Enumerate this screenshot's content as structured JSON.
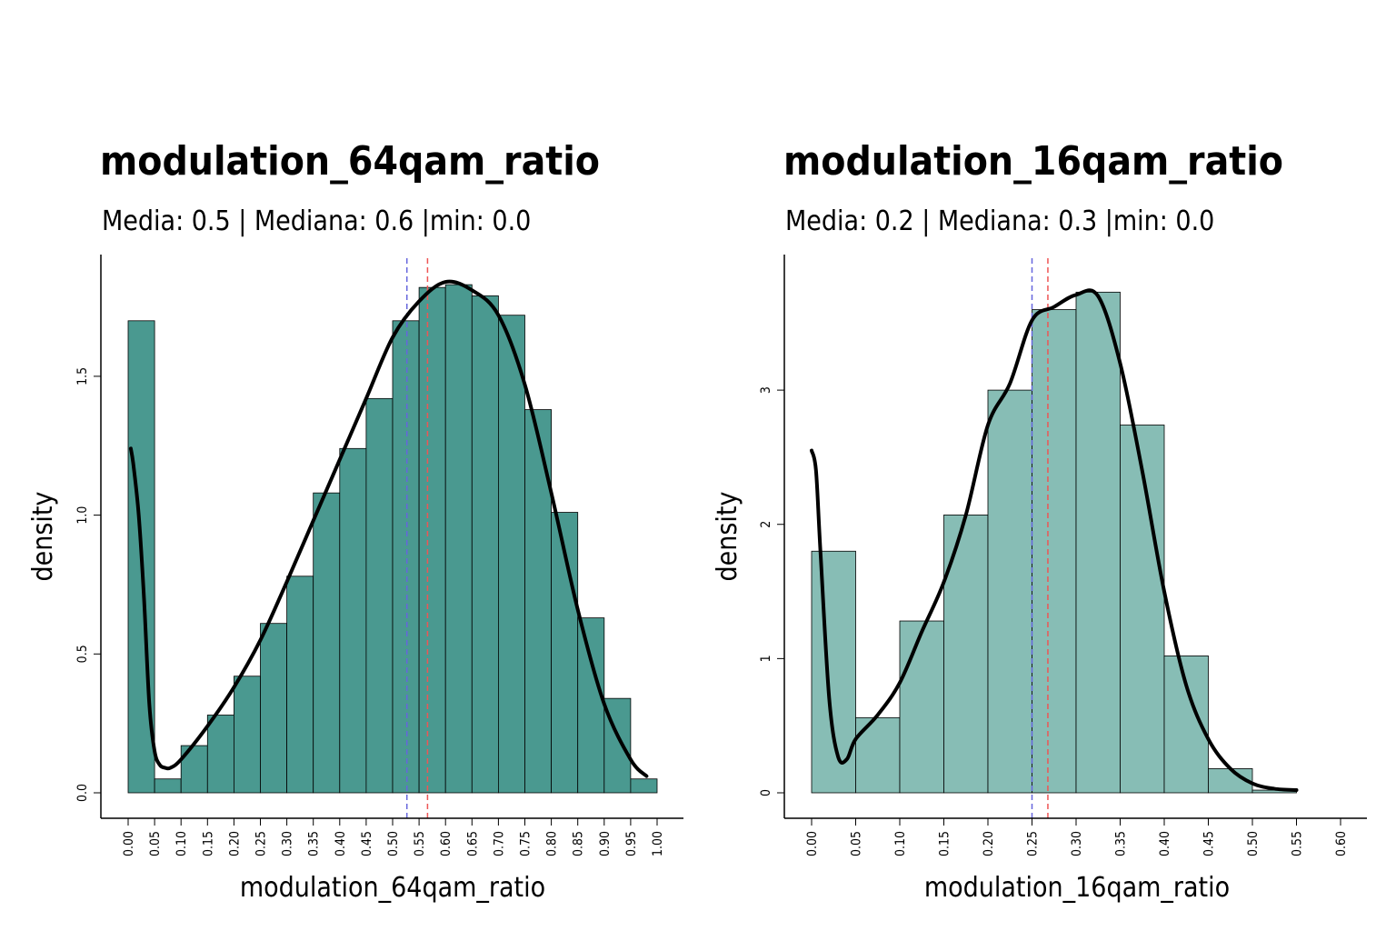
{
  "chart_data": [
    {
      "type": "bar",
      "title": "modulation_64qam_ratio",
      "subtitle": "Media: 0.5 | Mediana: 0.6 |min: 0.0",
      "xlabel": "modulation_64qam_ratio",
      "ylabel": "density",
      "bar_color": "#4a9990",
      "bin_width": 0.05,
      "bins_start": [
        0.0,
        0.05,
        0.1,
        0.15,
        0.2,
        0.25,
        0.3,
        0.35,
        0.4,
        0.45,
        0.5,
        0.55,
        0.6,
        0.65,
        0.7,
        0.75,
        0.8,
        0.85,
        0.9,
        0.95
      ],
      "values": [
        1.7,
        0.05,
        0.17,
        0.28,
        0.42,
        0.61,
        0.78,
        1.08,
        1.24,
        1.42,
        1.7,
        1.82,
        1.83,
        1.79,
        1.72,
        1.38,
        1.01,
        0.63,
        0.34,
        0.05
      ],
      "xlim": [
        0.0,
        1.0
      ],
      "ylim": [
        0.0,
        1.85
      ],
      "x_ticks": [
        "0.00",
        "0.05",
        "0.10",
        "0.15",
        "0.20",
        "0.25",
        "0.30",
        "0.35",
        "0.40",
        "0.45",
        "0.50",
        "0.55",
        "0.60",
        "0.65",
        "0.70",
        "0.75",
        "0.80",
        "0.85",
        "0.90",
        "0.95",
        "1.00"
      ],
      "y_ticks": [
        "0.0",
        "0.5",
        "1.0",
        "1.5"
      ],
      "mean_line": {
        "x": 0.527,
        "color": "#6666dd"
      },
      "median_line": {
        "x": 0.566,
        "color": "#ee5555"
      },
      "density_curve": {
        "x": [
          0.005,
          0.01,
          0.02,
          0.03,
          0.04,
          0.05,
          0.06,
          0.07,
          0.08,
          0.1,
          0.15,
          0.2,
          0.25,
          0.3,
          0.35,
          0.4,
          0.45,
          0.5,
          0.55,
          0.6,
          0.65,
          0.7,
          0.75,
          0.8,
          0.85,
          0.9,
          0.95,
          0.98
        ],
        "y": [
          1.24,
          1.18,
          1.0,
          0.7,
          0.32,
          0.15,
          0.1,
          0.09,
          0.09,
          0.12,
          0.24,
          0.38,
          0.55,
          0.76,
          0.98,
          1.2,
          1.42,
          1.64,
          1.77,
          1.84,
          1.81,
          1.72,
          1.47,
          1.08,
          0.66,
          0.32,
          0.12,
          0.06
        ]
      }
    },
    {
      "type": "bar",
      "title": "modulation_16qam_ratio",
      "subtitle": "Media: 0.2 | Mediana: 0.3 |min: 0.0",
      "xlabel": "modulation_16qam_ratio",
      "ylabel": "density",
      "bar_color": "#87bdb5",
      "bin_width": 0.05,
      "bins_start": [
        0.0,
        0.05,
        0.1,
        0.15,
        0.2,
        0.25,
        0.3,
        0.35,
        0.4,
        0.45,
        0.5,
        0.55
      ],
      "values": [
        1.8,
        0.56,
        1.28,
        2.07,
        3.0,
        3.6,
        3.73,
        2.74,
        1.02,
        0.18,
        0.02,
        0.0
      ],
      "xlim": [
        0.0,
        0.6
      ],
      "ylim": [
        0.0,
        3.8
      ],
      "x_ticks": [
        "0.00",
        "0.05",
        "0.10",
        "0.15",
        "0.20",
        "0.25",
        "0.30",
        "0.35",
        "0.40",
        "0.45",
        "0.50",
        "0.55",
        "0.60"
      ],
      "y_ticks": [
        "0",
        "1",
        "2",
        "3"
      ],
      "mean_line": {
        "x": 0.25,
        "color": "#6666dd"
      },
      "median_line": {
        "x": 0.268,
        "color": "#ee5555"
      },
      "density_curve": {
        "x": [
          0.0,
          0.005,
          0.01,
          0.02,
          0.03,
          0.04,
          0.05,
          0.075,
          0.1,
          0.125,
          0.15,
          0.175,
          0.2,
          0.225,
          0.25,
          0.275,
          0.3,
          0.325,
          0.35,
          0.375,
          0.4,
          0.425,
          0.45,
          0.475,
          0.5,
          0.525,
          0.55
        ],
        "y": [
          2.55,
          2.4,
          1.8,
          0.7,
          0.27,
          0.25,
          0.4,
          0.58,
          0.82,
          1.2,
          1.57,
          2.07,
          2.74,
          3.05,
          3.52,
          3.62,
          3.71,
          3.7,
          3.2,
          2.4,
          1.5,
          0.8,
          0.4,
          0.18,
          0.07,
          0.03,
          0.02
        ]
      }
    }
  ]
}
